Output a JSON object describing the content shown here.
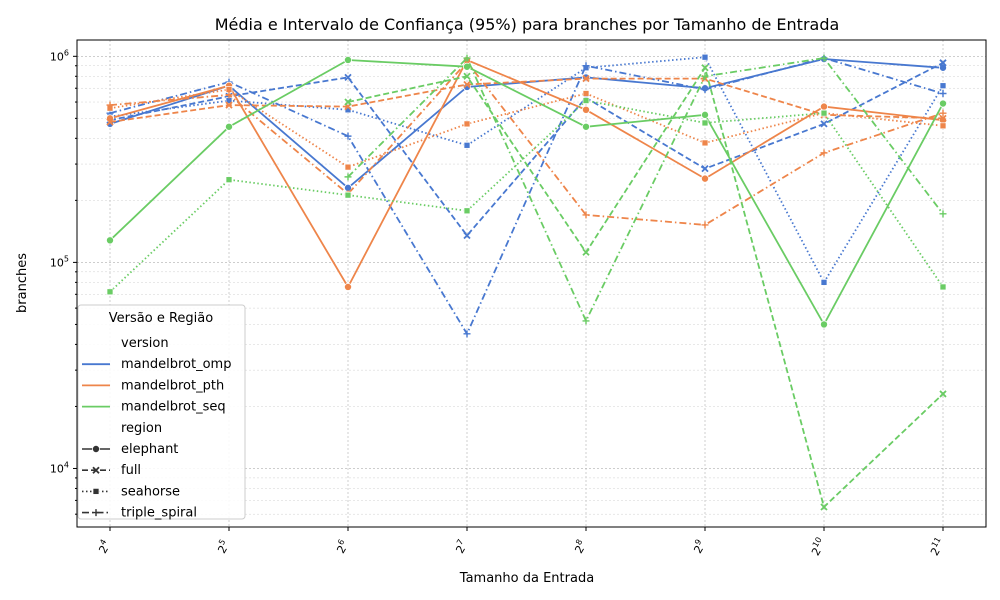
{
  "chart_data": {
    "type": "line",
    "title": "Média e Intervalo de Confiança (95%) para branches por Tamanho de Entrada",
    "xlabel": "Tamanho da Entrada",
    "ylabel": "branches",
    "y_scale": "log",
    "ylim": [
      5200,
      1200000
    ],
    "x": [
      16,
      32,
      64,
      128,
      256,
      512,
      1024,
      2048
    ],
    "x_tick_labels": [
      "2^4",
      "2^5",
      "2^6",
      "2^7",
      "2^8",
      "2^9",
      "2^10",
      "2^11"
    ],
    "x_tick_base": "2",
    "x_tick_exponents": [
      "4",
      "5",
      "6",
      "7",
      "8",
      "9",
      "10",
      "11"
    ],
    "y_ticks": [
      {
        "value": 10000,
        "base": "10",
        "exp": "4"
      },
      {
        "value": 100000,
        "base": "10",
        "exp": "5"
      },
      {
        "value": 1000000,
        "base": "10",
        "exp": "6"
      }
    ],
    "grid": true,
    "legend": {
      "title": "Versão e Região",
      "placement": "lower-left",
      "hue_header": "version",
      "style_header": "region",
      "versions": [
        {
          "name": "mandelbrot_omp",
          "color": "#4878d0"
        },
        {
          "name": "mandelbrot_pth",
          "color": "#ee854a"
        },
        {
          "name": "mandelbrot_seq",
          "color": "#6acc64"
        }
      ],
      "regions": [
        {
          "name": "elephant",
          "dash": "solid",
          "marker": "circle"
        },
        {
          "name": "full",
          "dash": "dashed",
          "marker": "x"
        },
        {
          "name": "seahorse",
          "dash": "dotted",
          "marker": "square"
        },
        {
          "name": "triple_spiral",
          "dash": "dashdot",
          "marker": "plus"
        }
      ]
    },
    "series": [
      {
        "version": "mandelbrot_omp",
        "region": "elephant",
        "values": [
          470000,
          720000,
          230000,
          710000,
          790000,
          700000,
          970000,
          880000
        ]
      },
      {
        "version": "mandelbrot_omp",
        "region": "full",
        "values": [
          490000,
          640000,
          790000,
          135000,
          630000,
          285000,
          470000,
          930000
        ]
      },
      {
        "version": "mandelbrot_omp",
        "region": "seahorse",
        "values": [
          510000,
          610000,
          550000,
          370000,
          880000,
          990000,
          80000,
          720000
        ]
      },
      {
        "version": "mandelbrot_omp",
        "region": "triple_spiral",
        "values": [
          530000,
          750000,
          410000,
          45000,
          900000,
          690000,
          980000,
          660000
        ]
      },
      {
        "version": "mandelbrot_pth",
        "region": "elephant",
        "values": [
          500000,
          720000,
          76000,
          960000,
          550000,
          255000,
          570000,
          490000
        ]
      },
      {
        "version": "mandelbrot_pth",
        "region": "full",
        "values": [
          480000,
          580000,
          570000,
          730000,
          780000,
          780000,
          520000,
          500000
        ]
      },
      {
        "version": "mandelbrot_pth",
        "region": "seahorse",
        "values": [
          560000,
          690000,
          290000,
          470000,
          660000,
          380000,
          530000,
          460000
        ]
      },
      {
        "version": "mandelbrot_pth",
        "region": "triple_spiral",
        "values": [
          580000,
          650000,
          215000,
          940000,
          170000,
          152000,
          340000,
          530000
        ]
      },
      {
        "version": "mandelbrot_seq",
        "region": "elephant",
        "values": [
          128000,
          455000,
          960000,
          890000,
          455000,
          520000,
          50000,
          590000
        ]
      },
      {
        "version": "mandelbrot_seq",
        "region": "full",
        "values": [
          null,
          null,
          600000,
          800000,
          112000,
          880000,
          6500,
          23000
        ]
      },
      {
        "version": "mandelbrot_seq",
        "region": "seahorse",
        "values": [
          72000,
          252000,
          212000,
          178000,
          610000,
          475000,
          530000,
          76000
        ]
      },
      {
        "version": "mandelbrot_seq",
        "region": "triple_spiral",
        "values": [
          null,
          null,
          260000,
          980000,
          52000,
          800000,
          980000,
          172000
        ]
      }
    ]
  }
}
